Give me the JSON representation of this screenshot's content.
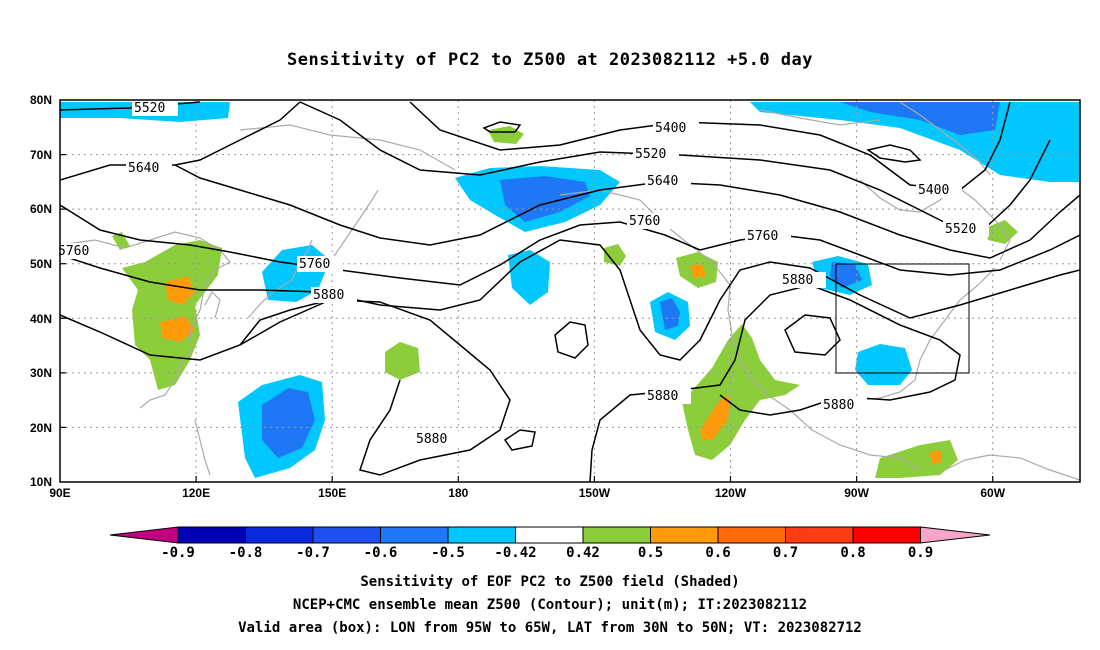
{
  "title": "Sensitivity of PC2 to Z500 at 2023082112 +5.0 day",
  "lat_labels": [
    "80N",
    "70N",
    "60N",
    "50N",
    "40N",
    "30N",
    "20N",
    "10N"
  ],
  "lon_labels": [
    "90E",
    "120E",
    "150E",
    "180",
    "150W",
    "120W",
    "90W",
    "60W"
  ],
  "contours": {
    "c5520": "5520",
    "c5400": "5400",
    "c5640": "5640",
    "c5760": "5760",
    "c5880": "5880"
  },
  "colorbar": {
    "labels": [
      "-0.9",
      "-0.8",
      "-0.7",
      "-0.6",
      "-0.5",
      "-0.42",
      "0.42",
      "0.5",
      "0.6",
      "0.7",
      "0.8",
      "0.9"
    ],
    "colors": {
      "left_tip": "#c0007f",
      "right_tip": "#f5a6c8",
      "c1": "#0000b4",
      "c2": "#0a28dc",
      "c3": "#1e50f0",
      "c4": "#1e78f5",
      "c5": "#00c8ff",
      "c6": "#ffffff",
      "c7": "#8ccd3c",
      "c8": "#ff9a0a",
      "c9": "#ff6a0a",
      "c10": "#ff3c14",
      "c11": "#ff0000"
    }
  },
  "captions": {
    "line1": "Sensitivity of EOF PC2 to Z500 field (Shaded)",
    "line2": "NCEP+CMC ensemble mean Z500 (Contour); unit(m); IT:2023082112",
    "line3": "Valid area (box): LON from 95W to 65W, LAT from 30N to 50N; VT: 2023082712"
  },
  "valid_box": {
    "lon_min": "95W",
    "lon_max": "65W",
    "lat_min": "30N",
    "lat_max": "50N"
  }
}
